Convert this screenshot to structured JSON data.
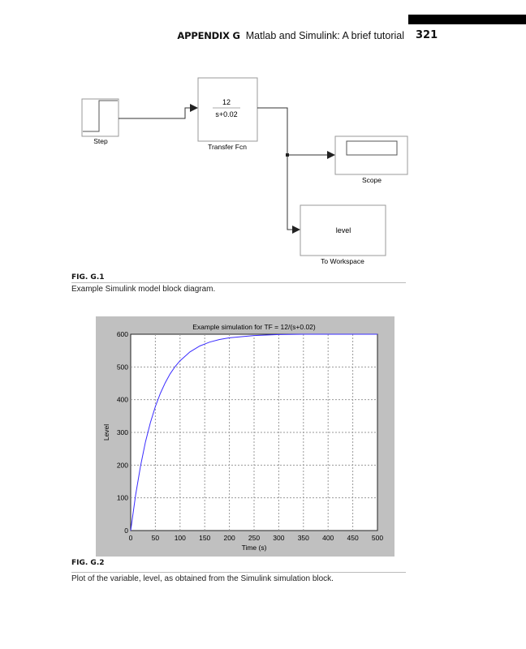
{
  "header": {
    "appendix": "APPENDIX G",
    "title": "Matlab and Simulink: A brief tutorial",
    "page_number": "321"
  },
  "figure1": {
    "label": "FIG. G.1",
    "caption": "Example Simulink model block diagram.",
    "blocks": {
      "step": "Step",
      "transfer_fcn": {
        "name": "Transfer Fcn",
        "numerator": "12",
        "denominator": "s+0.02"
      },
      "scope": "Scope",
      "to_workspace": {
        "name": "To Workspace",
        "variable": "level"
      }
    }
  },
  "figure2": {
    "label": "FIG. G.2",
    "caption": "Plot of the variable, level, as obtained from the Simulink simulation block."
  },
  "chart_data": {
    "type": "line",
    "title": "Example simulation for TF = 12/(s+0.02)",
    "xlabel": "Time (s)",
    "ylabel": "Level",
    "xlim": [
      0,
      500
    ],
    "ylim": [
      0,
      600
    ],
    "xticks": [
      0,
      50,
      100,
      150,
      200,
      250,
      300,
      350,
      400,
      450,
      500
    ],
    "yticks": [
      0,
      100,
      200,
      300,
      400,
      500,
      600
    ],
    "grid": true,
    "colors": {
      "line": "#3a2cff",
      "frame": "#c0c0c0"
    },
    "series": [
      {
        "x": [
          0,
          10,
          20,
          30,
          40,
          50,
          60,
          70,
          80,
          90,
          100,
          120,
          140,
          160,
          180,
          200,
          250,
          300,
          350,
          400,
          450,
          500
        ],
        "y": [
          0,
          109,
          198,
          271,
          330,
          379,
          419,
          452,
          479,
          501,
          519,
          546,
          564,
          576,
          584,
          589,
          596,
          599,
          600,
          600,
          600,
          600
        ]
      }
    ]
  }
}
